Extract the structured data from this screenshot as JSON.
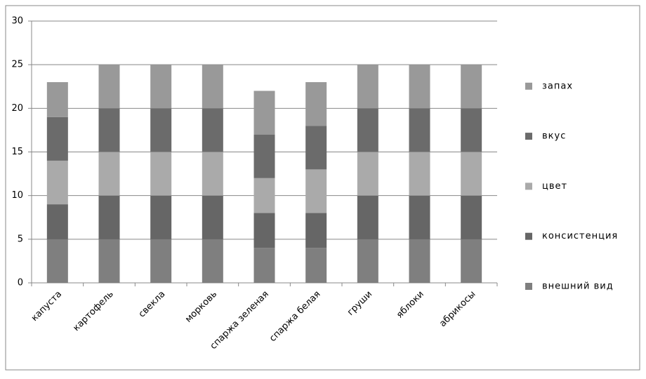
{
  "chart_data": {
    "type": "stacked_bar",
    "categories": [
      "капуста",
      "картофель",
      "свекла",
      "морковь",
      "спаржа зеленая",
      "спаржа белая",
      "груши",
      "яблоки",
      "абрикосы"
    ],
    "series": [
      {
        "name": "внешний вид",
        "color": "#7f7f7f",
        "values": [
          5,
          5,
          5,
          5,
          4,
          4,
          5,
          5,
          5
        ]
      },
      {
        "name": "консистенция",
        "color": "#666666",
        "values": [
          4,
          5,
          5,
          5,
          4,
          4,
          5,
          5,
          5
        ]
      },
      {
        "name": "цвет",
        "color": "#aaaaaa",
        "values": [
          5,
          5,
          5,
          5,
          4,
          5,
          5,
          5,
          5
        ]
      },
      {
        "name": "вкус",
        "color": "#6b6b6b",
        "values": [
          5,
          5,
          5,
          5,
          5,
          5,
          5,
          5,
          5
        ]
      },
      {
        "name": "запах",
        "color": "#999999",
        "values": [
          4,
          5,
          5,
          5,
          5,
          5,
          5,
          5,
          5
        ]
      }
    ],
    "ylim": [
      0,
      30
    ],
    "yticks": [
      0,
      5,
      10,
      15,
      20,
      25,
      30
    ],
    "grid": true,
    "legend": "right"
  }
}
